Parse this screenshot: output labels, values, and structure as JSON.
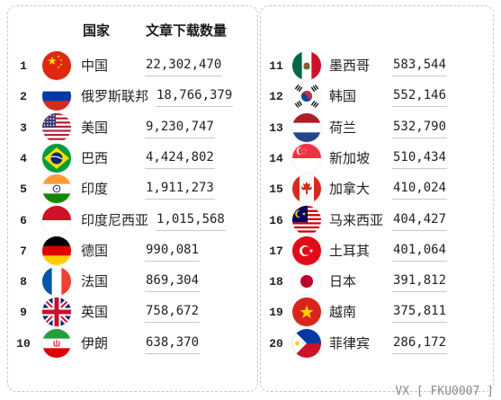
{
  "header": {
    "country_label": "国家",
    "downloads_label": "文章下载数量"
  },
  "watermark": "VX [ FKU0007 ]",
  "chart_data": {
    "type": "table",
    "columns": [
      "国家",
      "文章下载数量"
    ],
    "rows": [
      {
        "rank": "1",
        "country": "中国",
        "value": "22,302,470",
        "flag": "china-flag-icon"
      },
      {
        "rank": "2",
        "country": "俄罗斯联邦",
        "value": "18,766,379",
        "flag": "russia-flag-icon"
      },
      {
        "rank": "3",
        "country": "美国",
        "value": "9,230,747",
        "flag": "usa-flag-icon"
      },
      {
        "rank": "4",
        "country": "巴西",
        "value": "4,424,802",
        "flag": "brazil-flag-icon"
      },
      {
        "rank": "5",
        "country": "印度",
        "value": "1,911,273",
        "flag": "india-flag-icon"
      },
      {
        "rank": "6",
        "country": "印度尼西亚",
        "value": "1,015,568",
        "flag": "indonesia-flag-icon"
      },
      {
        "rank": "7",
        "country": "德国",
        "value": "990,081",
        "flag": "germany-flag-icon"
      },
      {
        "rank": "8",
        "country": "法国",
        "value": "869,304",
        "flag": "france-flag-icon"
      },
      {
        "rank": "9",
        "country": "英国",
        "value": "758,672",
        "flag": "uk-flag-icon"
      },
      {
        "rank": "10",
        "country": "伊朗",
        "value": "638,370",
        "flag": "iran-flag-icon"
      },
      {
        "rank": "11",
        "country": "墨西哥",
        "value": "583,544",
        "flag": "mexico-flag-icon"
      },
      {
        "rank": "12",
        "country": "韩国",
        "value": "552,146",
        "flag": "south-korea-flag-icon"
      },
      {
        "rank": "13",
        "country": "荷兰",
        "value": "532,790",
        "flag": "netherlands-flag-icon"
      },
      {
        "rank": "14",
        "country": "新加坡",
        "value": "510,434",
        "flag": "singapore-flag-icon"
      },
      {
        "rank": "15",
        "country": "加拿大",
        "value": "410,024",
        "flag": "canada-flag-icon"
      },
      {
        "rank": "16",
        "country": "马来西亚",
        "value": "404,427",
        "flag": "malaysia-flag-icon"
      },
      {
        "rank": "17",
        "country": "土耳其",
        "value": "401,064",
        "flag": "turkey-flag-icon"
      },
      {
        "rank": "18",
        "country": "日本",
        "value": "391,812",
        "flag": "japan-flag-icon"
      },
      {
        "rank": "19",
        "country": "越南",
        "value": "375,811",
        "flag": "vietnam-flag-icon"
      },
      {
        "rank": "20",
        "country": "菲律宾",
        "value": "286,172",
        "flag": "philippines-flag-icon"
      }
    ]
  }
}
